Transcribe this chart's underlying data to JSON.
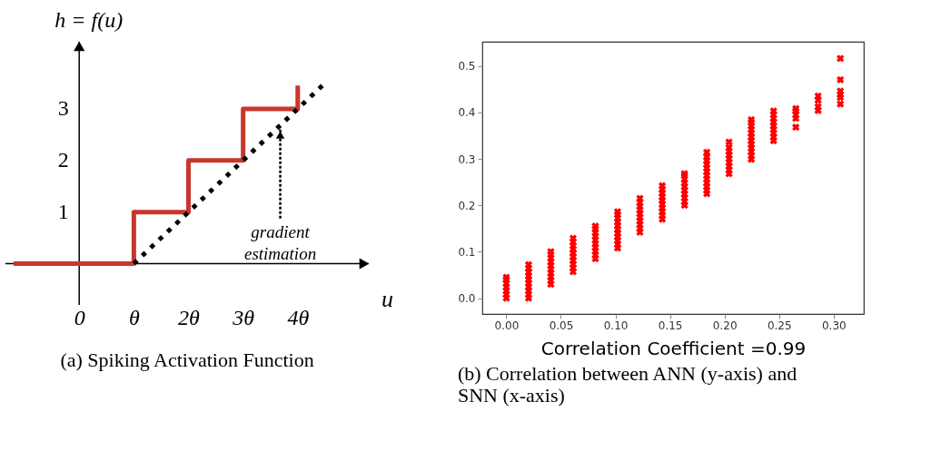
{
  "chart_data": [
    {
      "type": "step",
      "title": "(a) Spiking Activation Function",
      "xlabel": "u",
      "ylabel": "h = f(u)",
      "xlim": [
        -1.35,
        5.3
      ],
      "ylim": [
        -0.8,
        4.3
      ],
      "xticks": [
        {
          "value": 0,
          "label": "0"
        },
        {
          "value": 1,
          "label": "θ"
        },
        {
          "value": 2,
          "label": "2θ"
        },
        {
          "value": 3,
          "label": "3θ"
        },
        {
          "value": 4,
          "label": "4θ"
        }
      ],
      "yticks": [
        1,
        2,
        3
      ],
      "grid": false,
      "series": [
        {
          "type": "step",
          "color": "#c8372d",
          "x": [
            -1.2,
            1,
            2,
            3,
            4
          ],
          "values": [
            0,
            1,
            2,
            3,
            3.45
          ]
        },
        {
          "type": "line",
          "color": "#000000",
          "line_style": "dotted",
          "x": [
            1,
            4.45
          ],
          "values": [
            0,
            3.45
          ]
        }
      ],
      "annotations": [
        {
          "text": "gradient estimation",
          "x": 3.68,
          "y": 2.6
        }
      ]
    },
    {
      "type": "scatter",
      "title": "(b) Correlation between ANN (y-axis) and SNN (x-axis)",
      "xlabel": "Correlation Coefficient =0.99",
      "xlim": [
        -0.022,
        0.3276
      ],
      "ylim": [
        -0.034,
        0.552
      ],
      "xticks": [
        {
          "value": 0,
          "label": "0.00"
        },
        0.05,
        {
          "value": 0.1,
          "label": "0.10"
        },
        0.15,
        {
          "value": 0.2,
          "label": "0.20"
        },
        0.25,
        {
          "value": 0.3,
          "label": "0.30"
        }
      ],
      "yticks": [
        {
          "value": 0,
          "label": "0.0"
        },
        0.1,
        0.2,
        0.3,
        0.4,
        0.5
      ],
      "grid": false,
      "marker": "cross",
      "series": [
        {
          "color": "#ff0000",
          "x": [
            0,
            0,
            0,
            0,
            0,
            0,
            0,
            0.0204,
            0.0204,
            0.0204,
            0.0204,
            0.0204,
            0.0204,
            0.0204,
            0.0204,
            0.0204,
            0.0204,
            0.0408,
            0.0408,
            0.0408,
            0.0408,
            0.0408,
            0.0408,
            0.0408,
            0.0408,
            0.0408,
            0.0408,
            0.0612,
            0.0612,
            0.0612,
            0.0612,
            0.0612,
            0.0612,
            0.0612,
            0.0612,
            0.0612,
            0.0612,
            0.0816,
            0.0816,
            0.0816,
            0.0816,
            0.0816,
            0.0816,
            0.0816,
            0.0816,
            0.0816,
            0.0816,
            0.102,
            0.102,
            0.102,
            0.102,
            0.102,
            0.102,
            0.102,
            0.102,
            0.102,
            0.102,
            0.102,
            0.1224,
            0.1224,
            0.1224,
            0.1224,
            0.1224,
            0.1224,
            0.1224,
            0.1224,
            0.1224,
            0.1224,
            0.1429,
            0.1429,
            0.1429,
            0.1429,
            0.1429,
            0.1429,
            0.1429,
            0.1429,
            0.1429,
            0.1429,
            0.1633,
            0.1633,
            0.1633,
            0.1633,
            0.1633,
            0.1633,
            0.1633,
            0.1633,
            0.1633,
            0.1633,
            0.1837,
            0.1837,
            0.1837,
            0.1837,
            0.1837,
            0.1837,
            0.1837,
            0.1837,
            0.1837,
            0.1837,
            0.1837,
            0.1837,
            0.2041,
            0.2041,
            0.2041,
            0.2041,
            0.2041,
            0.2041,
            0.2041,
            0.2041,
            0.2041,
            0.2245,
            0.2245,
            0.2245,
            0.2245,
            0.2245,
            0.2245,
            0.2245,
            0.2245,
            0.2245,
            0.2245,
            0.2245,
            0.2245,
            0.2449,
            0.2449,
            0.2449,
            0.2449,
            0.2449,
            0.2449,
            0.2449,
            0.2449,
            0.2449,
            0.2653,
            0.2653,
            0.2653,
            0.2653,
            0.2653,
            0.2857,
            0.2857,
            0.2857,
            0.2857,
            0.3061,
            0.3061,
            0.3061,
            0.3061,
            0.3061,
            0.3061
          ],
          "values": [
            0,
            0.008,
            0.016,
            0.024,
            0.032,
            0.04,
            0.045,
            0,
            0.008,
            0.016,
            0.024,
            0.032,
            0.04,
            0.048,
            0.056,
            0.064,
            0.072,
            0.03,
            0.038,
            0.046,
            0.054,
            0.062,
            0.07,
            0.078,
            0.086,
            0.094,
            0.1,
            0.057,
            0.065,
            0.073,
            0.081,
            0.089,
            0.097,
            0.105,
            0.113,
            0.121,
            0.129,
            0.085,
            0.093,
            0.101,
            0.109,
            0.117,
            0.125,
            0.133,
            0.141,
            0.149,
            0.155,
            0.108,
            0.116,
            0.124,
            0.132,
            0.14,
            0.148,
            0.156,
            0.164,
            0.172,
            0.18,
            0.186,
            0.142,
            0.15,
            0.158,
            0.166,
            0.174,
            0.182,
            0.19,
            0.198,
            0.206,
            0.215,
            0.17,
            0.178,
            0.186,
            0.194,
            0.202,
            0.21,
            0.218,
            0.226,
            0.234,
            0.242,
            0.2,
            0.208,
            0.216,
            0.224,
            0.232,
            0.24,
            0.248,
            0.256,
            0.264,
            0.268,
            0.225,
            0.232,
            0.24,
            0.248,
            0.256,
            0.264,
            0.272,
            0.28,
            0.288,
            0.296,
            0.304,
            0.314,
            0.268,
            0.276,
            0.284,
            0.292,
            0.3,
            0.308,
            0.316,
            0.324,
            0.336,
            0.299,
            0.307,
            0.315,
            0.323,
            0.331,
            0.339,
            0.347,
            0.355,
            0.363,
            0.371,
            0.378,
            0.384,
            0.339,
            0.347,
            0.355,
            0.363,
            0.371,
            0.379,
            0.387,
            0.395,
            0.403,
            0.368,
            0.387,
            0.395,
            0.403,
            0.408,
            0.404,
            0.412,
            0.426,
            0.435,
            0.418,
            0.432,
            0.438,
            0.446,
            0.47,
            0.516
          ]
        }
      ]
    }
  ]
}
